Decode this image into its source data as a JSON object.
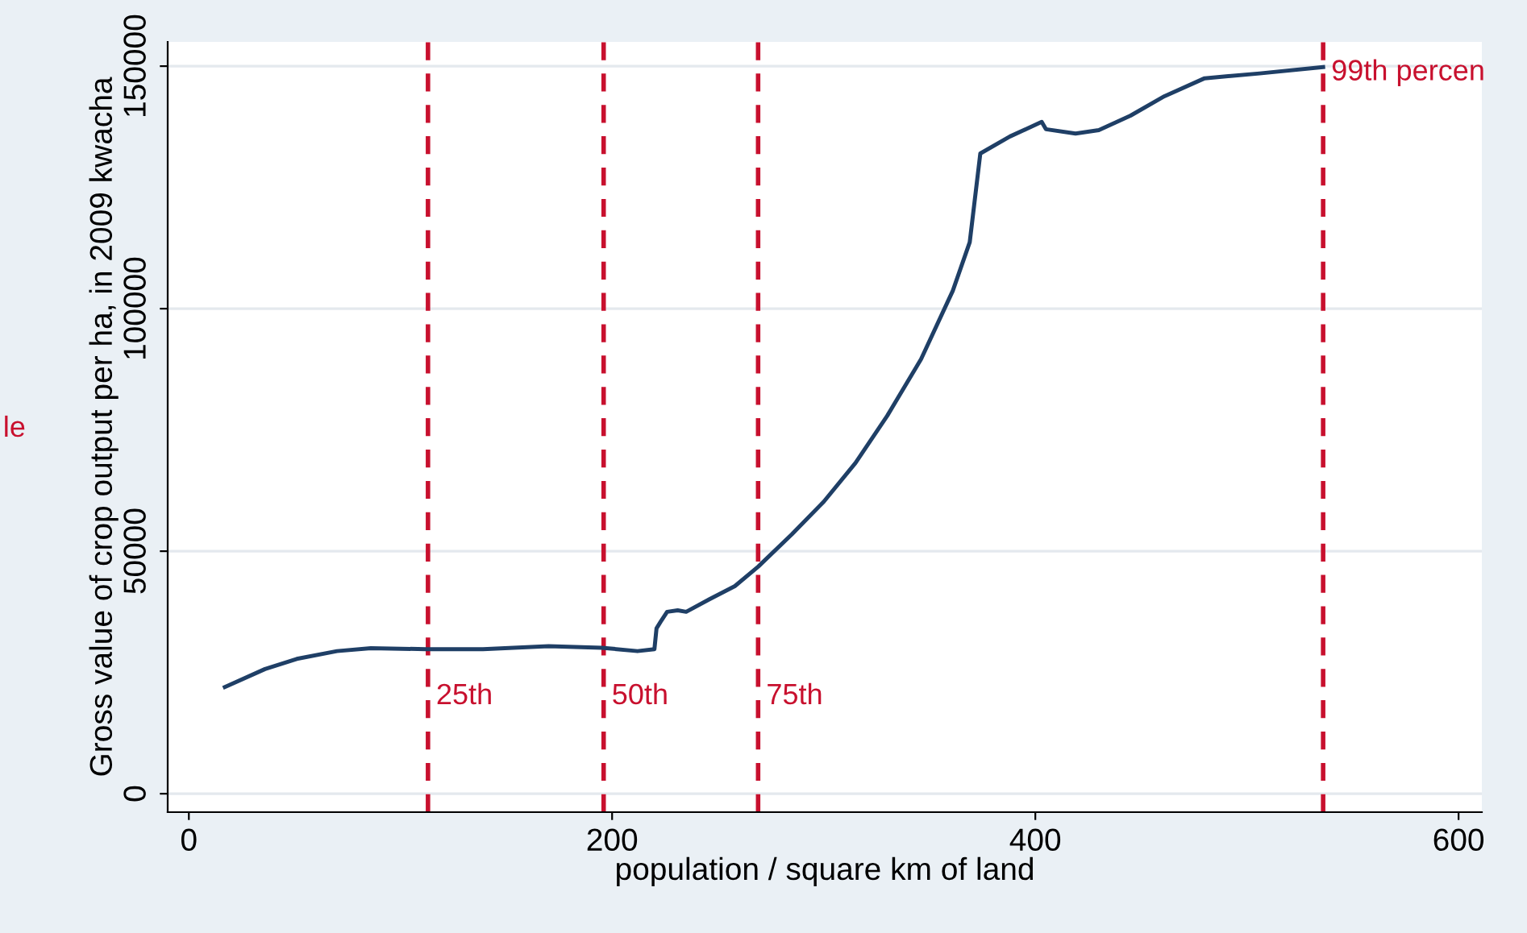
{
  "chart_data": {
    "type": "line",
    "xlabel": "population / square km of land",
    "ylabel": "Gross value of crop output per ha, in 2009 kwacha",
    "xlim": [
      -10,
      611
    ],
    "xticks": [
      0,
      200,
      400,
      600
    ],
    "ylim": [
      -3800,
      155000
    ],
    "yticks": [
      0,
      50000,
      100000,
      150000
    ],
    "grid": "y",
    "series": [
      {
        "color": "#1f3f66",
        "x": [
          17,
          36,
          51,
          70,
          86,
          112,
          139,
          170,
          195,
          212,
          220,
          221,
          223,
          226,
          231,
          235,
          246,
          258,
          269,
          285,
          300,
          315,
          330,
          346,
          361,
          369,
          374,
          388,
          403,
          405,
          419,
          430,
          445,
          461,
          480,
          506,
          536
        ],
        "values": [
          22000,
          25700,
          27800,
          29400,
          30000,
          29800,
          29800,
          30400,
          30100,
          29400,
          29800,
          34100,
          35500,
          37500,
          37800,
          37500,
          40100,
          42800,
          46800,
          53500,
          60200,
          68200,
          77900,
          89600,
          103700,
          113700,
          132000,
          135500,
          138500,
          137000,
          136100,
          136800,
          139800,
          143800,
          147500,
          148500,
          149800
        ]
      }
    ],
    "ref_lines": [
      {
        "axis": "x",
        "value": 113,
        "label": "25th",
        "color": "#c8102e",
        "line_style": "dashed"
      },
      {
        "axis": "x",
        "value": 196,
        "label": "50th",
        "color": "#c8102e",
        "line_style": "dashed"
      },
      {
        "axis": "x",
        "value": 269,
        "label": "75th",
        "color": "#c8102e",
        "line_style": "dashed"
      },
      {
        "axis": "x",
        "value": 536,
        "label": "99th percen",
        "color": "#c8102e",
        "line_style": "dashed"
      }
    ],
    "annotations": [
      "le"
    ]
  }
}
